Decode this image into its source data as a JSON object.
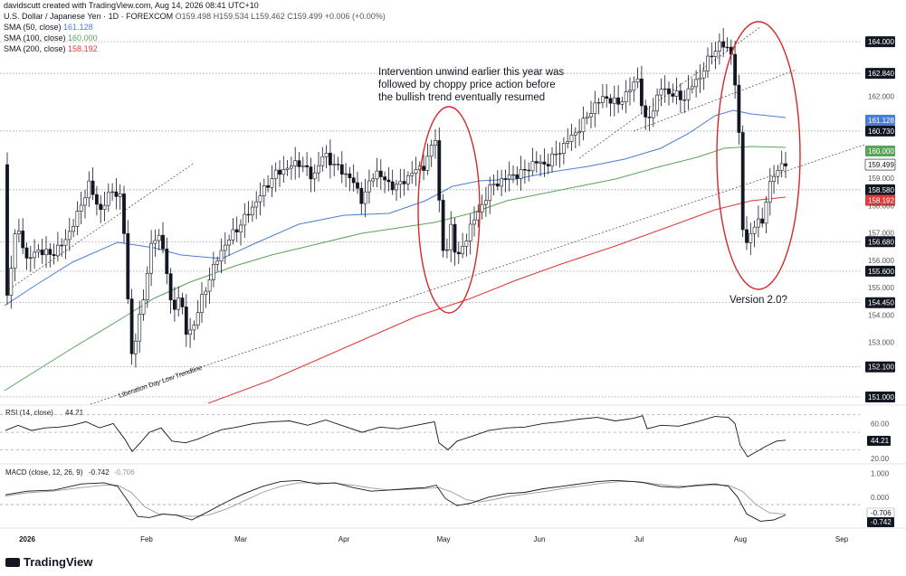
{
  "header": {
    "credit": "davidscutt created with TradingView.com, Aug 14, 2026 08:41 UTC+10",
    "symbol_line": "U.S. Dollar / Japanese Yen · 1D · FOREXCOM",
    "ohlc": "O159.498 H159.534 L159.462 C159.499 +0.006 (+0.00%)",
    "sma50_label": "SMA (50, close)",
    "sma50_value": "161.128",
    "sma100_label": "SMA (100, close)",
    "sma100_value": "160.000",
    "sma200_label": "SMA (200, close)",
    "sma200_value": "158.192"
  },
  "logo_text": "TradingView",
  "colors": {
    "up": "#ffffff",
    "down": "#131722",
    "sma50": "#4a7dd6",
    "sma100": "#5aa45a",
    "sma200": "#e03a3a",
    "ellipse": "#d62828",
    "rsi": "#131722",
    "macd": "#131722",
    "signal": "#999999"
  },
  "chart_data": {
    "type": "candlestick",
    "title": "U.S. Dollar / Japanese Yen · 1D · FOREXCOM",
    "x_ticks": [
      "2026",
      "Feb",
      "Mar",
      "Apr",
      "May",
      "Jun",
      "Jul",
      "Aug",
      "Sep"
    ],
    "price_axis": {
      "ylim": [
        150.8,
        164.3
      ],
      "ticks": [
        "164.000",
        "162.840",
        "162.000",
        "161.128",
        "160.730",
        "160.000",
        "159.499",
        "159.000",
        "158.580",
        "158.192",
        "158.000",
        "157.000",
        "156.680",
        "156.000",
        "155.600",
        "155.000",
        "154.450",
        "154.000",
        "153.000",
        "152.100",
        "151.000"
      ],
      "highlight_labels": [
        {
          "text": "164.000",
          "style": "dark"
        },
        {
          "text": "162.840",
          "style": "dark"
        },
        {
          "text": "161.128",
          "style": "blue"
        },
        {
          "text": "160.730",
          "style": "dark"
        },
        {
          "text": "160.000",
          "style": "green"
        },
        {
          "text": "159.499",
          "style": "plain"
        },
        {
          "text": "158.580",
          "style": "dark"
        },
        {
          "text": "158.192",
          "style": "red"
        },
        {
          "text": "156.680",
          "style": "dark"
        },
        {
          "text": "155.600",
          "style": "dark"
        },
        {
          "text": "154.450",
          "style": "dark"
        },
        {
          "text": "152.100",
          "style": "dark"
        },
        {
          "text": "151.000",
          "style": "dark"
        }
      ]
    },
    "horizontal_levels": [
      164.0,
      162.84,
      160.73,
      158.58,
      156.68,
      155.6,
      154.45,
      152.1,
      151.0
    ],
    "annotations": [
      {
        "text": "Intervention unwind earlier this year was"
      },
      {
        "text": "followed by choppy price action before"
      },
      {
        "text": "the bullish trend eventually resumed"
      },
      {
        "text": "Version 2.0?"
      },
      {
        "text": "Liberation Day Low Trendline"
      }
    ],
    "rsi": {
      "label": "RSI (14, close)",
      "value": "44.21",
      "ticks": [
        "60.00",
        "40.00",
        "20.00"
      ],
      "levels": [
        70,
        50,
        30
      ],
      "ylim": [
        15,
        80
      ]
    },
    "macd": {
      "label": "MACD (close, 12, 26, 9)",
      "macd_value": "-0.742",
      "signal_value": "-0.706",
      "ticks": [
        "1.000",
        "0.000",
        "-1.000"
      ],
      "ylim": [
        -1.25,
        1.35
      ]
    }
  }
}
